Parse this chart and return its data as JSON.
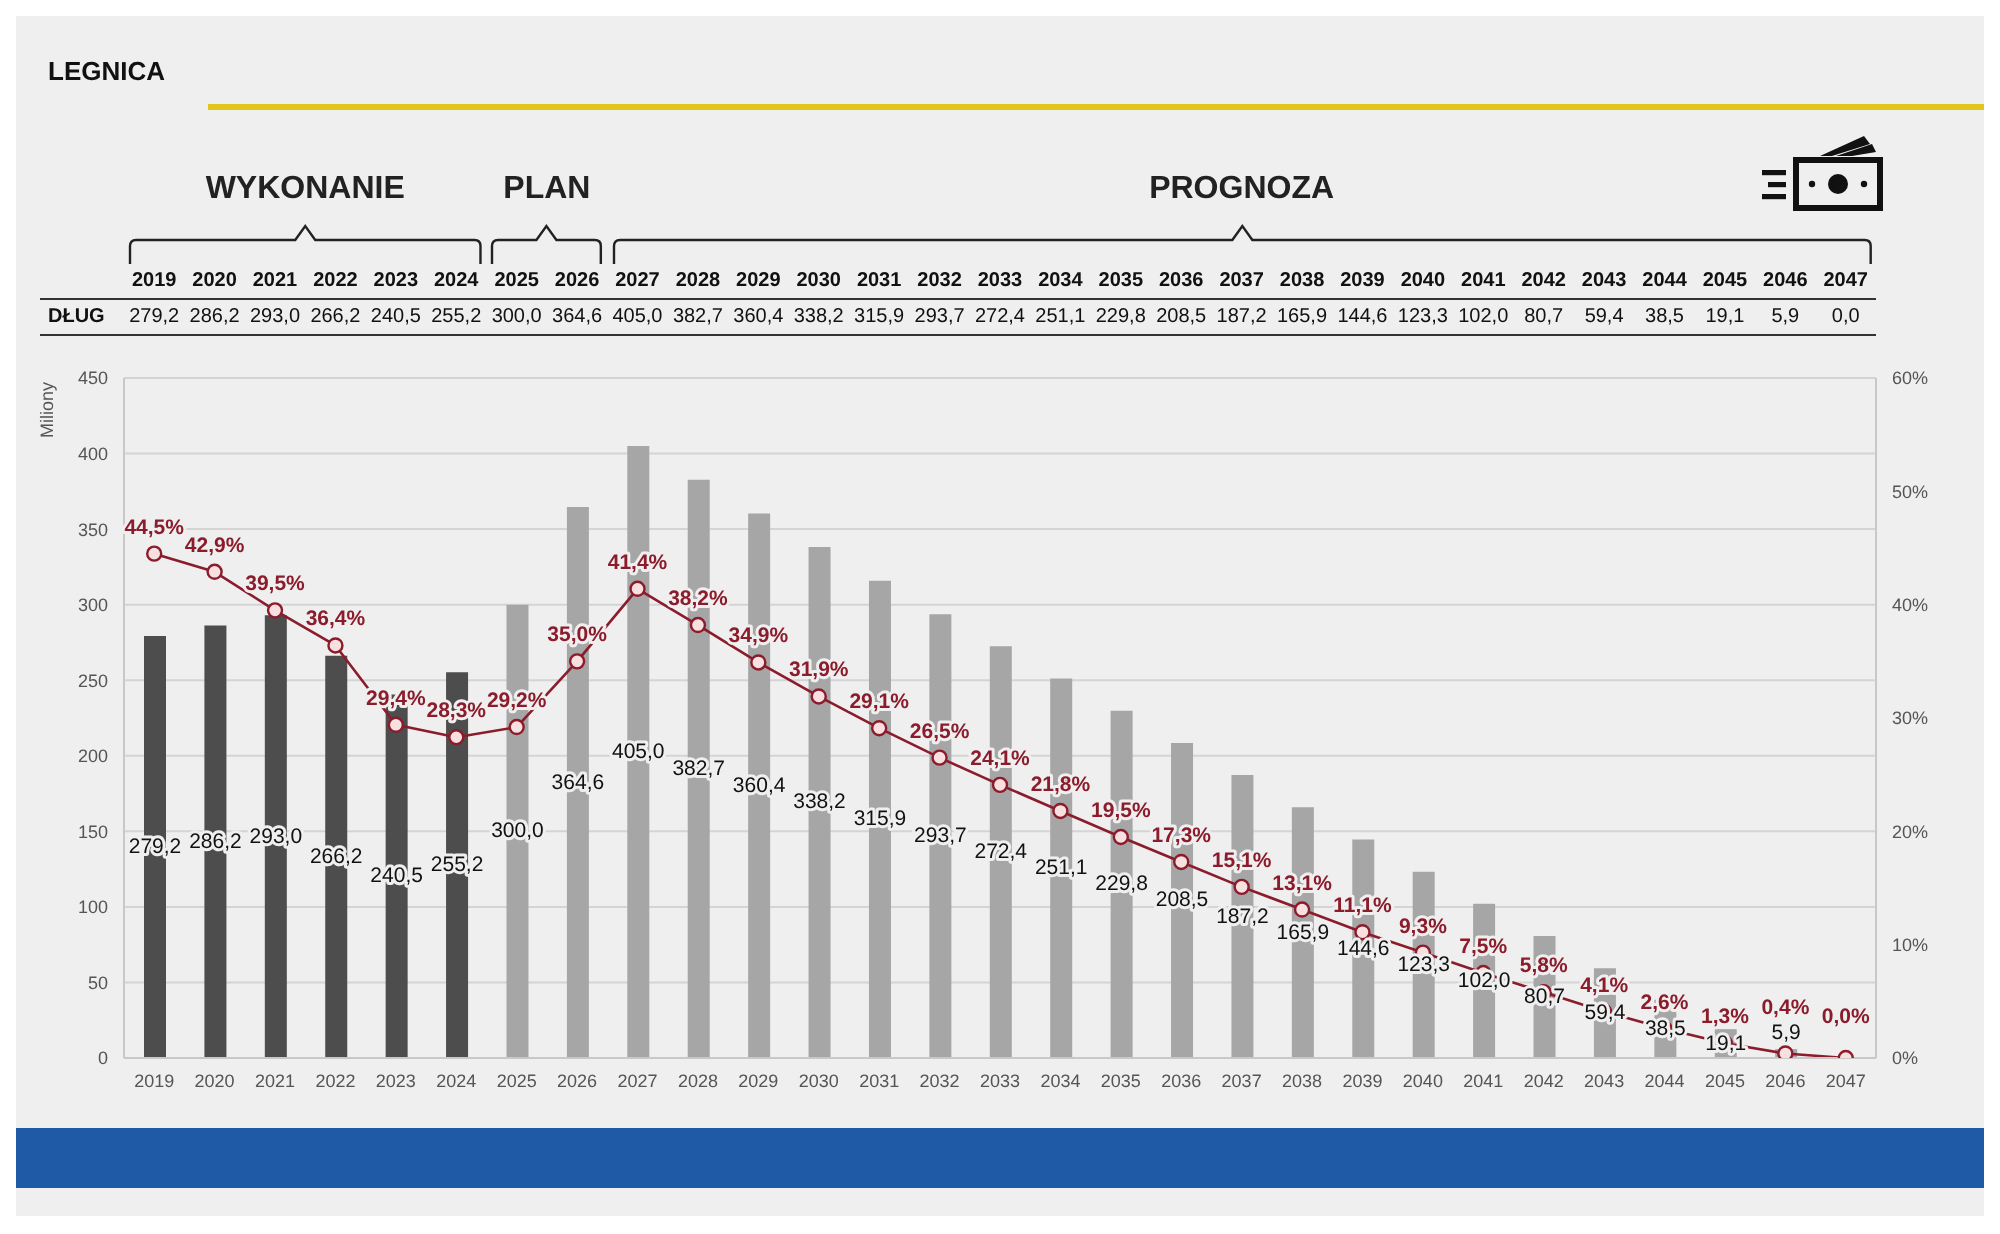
{
  "chart_data": {
    "type": "bar",
    "title": "LEGNICA",
    "ylabel": "Miliony",
    "categories": [
      "2019",
      "2020",
      "2021",
      "2022",
      "2023",
      "2024",
      "2025",
      "2026",
      "2027",
      "2028",
      "2029",
      "2030",
      "2031",
      "2032",
      "2033",
      "2034",
      "2035",
      "2036",
      "2037",
      "2038",
      "2039",
      "2040",
      "2041",
      "2042",
      "2043",
      "2044",
      "2045",
      "2046",
      "2047"
    ],
    "series": [
      {
        "name": "DŁUG",
        "colors": [
          "#4d4d4d",
          "#4d4d4d",
          "#4d4d4d",
          "#4d4d4d",
          "#4d4d4d",
          "#4d4d4d",
          "#a6a6a6",
          "#a6a6a6",
          "#a6a6a6",
          "#a6a6a6",
          "#a6a6a6",
          "#a6a6a6",
          "#a6a6a6",
          "#a6a6a6",
          "#a6a6a6",
          "#a6a6a6",
          "#a6a6a6",
          "#a6a6a6",
          "#a6a6a6",
          "#a6a6a6",
          "#a6a6a6",
          "#a6a6a6",
          "#a6a6a6",
          "#a6a6a6",
          "#a6a6a6",
          "#a6a6a6",
          "#a6a6a6",
          "#a6a6a6",
          "#a6a6a6"
        ],
        "values": [
          279.2,
          286.2,
          293.0,
          266.2,
          240.5,
          255.2,
          300.0,
          364.6,
          405.0,
          382.7,
          360.4,
          338.2,
          315.9,
          293.7,
          272.4,
          251.1,
          229.8,
          208.5,
          187.2,
          165.9,
          144.6,
          123.3,
          102.0,
          80.7,
          59.4,
          38.5,
          19.1,
          5.9,
          0.0
        ],
        "value_labels": [
          "279,2",
          "286,2",
          "293,0",
          "266,2",
          "240,5",
          "255,2",
          "300,0",
          "364,6",
          "405,0",
          "382,7",
          "360,4",
          "338,2",
          "315,9",
          "293,7",
          "272,4",
          "251,1",
          "229,8",
          "208,5",
          "187,2",
          "165,9",
          "144,6",
          "123,3",
          "102,0",
          "80,7",
          "59,4",
          "38,5",
          "19,1",
          "5,9",
          "0,0"
        ]
      },
      {
        "type": "line",
        "axis": "y2",
        "color": "#8b1c2c",
        "values": [
          44.5,
          42.9,
          39.5,
          36.4,
          29.4,
          28.3,
          29.2,
          35.0,
          41.4,
          38.2,
          34.9,
          31.9,
          29.1,
          26.5,
          24.1,
          21.8,
          19.5,
          17.3,
          15.1,
          13.1,
          11.1,
          9.3,
          7.5,
          5.8,
          4.1,
          2.6,
          1.3,
          0.4,
          0.0
        ],
        "value_labels": [
          "44,5%",
          "42,9%",
          "39,5%",
          "36,4%",
          "29,4%",
          "28,3%",
          "29,2%",
          "35,0%",
          "41,4%",
          "38,2%",
          "34,9%",
          "31,9%",
          "29,1%",
          "26,5%",
          "24,1%",
          "21,8%",
          "19,5%",
          "17,3%",
          "15,1%",
          "13,1%",
          "11,1%",
          "9,3%",
          "7,5%",
          "5,8%",
          "4,1%",
          "2,6%",
          "1,3%",
          "0,4%",
          "0,0%"
        ]
      }
    ],
    "ylim": [
      0,
      450
    ],
    "yticks": [
      0,
      50,
      100,
      150,
      200,
      250,
      300,
      350,
      400,
      450
    ],
    "y2lim": [
      0,
      60
    ],
    "y2ticks": [
      {
        "value": 0,
        "label": "0%"
      },
      {
        "value": 10,
        "label": "10%"
      },
      {
        "value": 20,
        "label": "20%"
      },
      {
        "value": 30,
        "label": "30%"
      },
      {
        "value": 40,
        "label": "40%"
      },
      {
        "value": 50,
        "label": "50%"
      },
      {
        "value": 60,
        "label": "60%"
      }
    ],
    "grid": "y",
    "marker": "circle",
    "annotations": [
      "WYKONANIE",
      "PLAN",
      "PROGNOZA"
    ]
  }
}
